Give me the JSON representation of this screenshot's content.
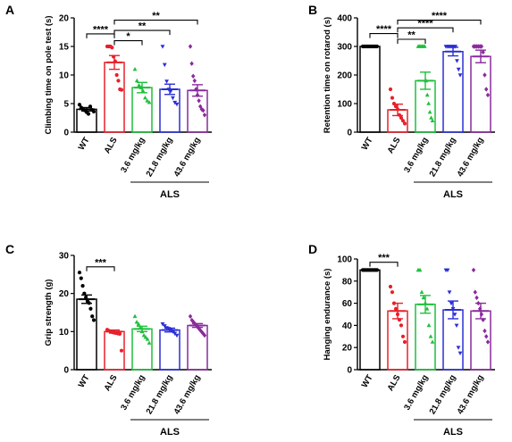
{
  "groups": {
    "labels": [
      "WT",
      "ALS",
      "3.6 mg/kg",
      "21.8 mg/kg",
      "43.6 mg/kg"
    ],
    "treatment_label": "ALS",
    "colors": [
      "#000000",
      "#e8202a",
      "#1fbf3c",
      "#2a2fd6",
      "#8a2a9c"
    ],
    "markers": [
      "circle",
      "circle",
      "triangle",
      "triangle-down",
      "diamond"
    ]
  },
  "chart_data": [
    {
      "panel": "A",
      "type": "bar",
      "ylabel": "Climbing time on pole test (s)",
      "ylim": [
        0,
        20
      ],
      "yticks": [
        0,
        5,
        10,
        15,
        20
      ],
      "means": [
        4.0,
        12.2,
        7.8,
        7.5,
        7.3
      ],
      "sem": [
        0.3,
        1.2,
        0.9,
        0.9,
        1.0
      ],
      "points": [
        [
          4.8,
          4.3,
          4.0,
          3.8,
          3.5,
          3.2,
          4.5,
          3.9,
          3.6
        ],
        [
          15.0,
          15.0,
          15.0,
          14.8,
          13.2,
          12.4,
          10.0,
          9.0,
          7.5,
          7.4
        ],
        [
          11.0,
          9.0,
          8.2,
          7.8,
          7.2,
          6.0,
          5.5,
          5.2
        ],
        [
          15.0,
          11.8,
          8.9,
          7.5,
          7.2,
          6.0,
          5.2,
          4.9
        ],
        [
          15.0,
          12.0,
          9.8,
          9.0,
          7.5,
          6.5,
          5.5,
          4.5,
          4.0,
          3.8,
          3.0
        ]
      ],
      "significance": [
        {
          "from": 0,
          "to": 1,
          "label": "****",
          "y": 17.2
        },
        {
          "from": 1,
          "to": 2,
          "label": "*",
          "y": 16.0
        },
        {
          "from": 1,
          "to": 3,
          "label": "**",
          "y": 17.8
        },
        {
          "from": 1,
          "to": 4,
          "label": "**",
          "y": 19.6
        }
      ]
    },
    {
      "panel": "B",
      "type": "bar",
      "ylabel": "Retention time on rotarod (s)",
      "ylim": [
        0,
        400
      ],
      "yticks": [
        0,
        100,
        200,
        300,
        400
      ],
      "means": [
        300,
        78,
        180,
        282,
        265
      ],
      "sem": [
        0,
        20,
        30,
        15,
        22
      ],
      "points": [
        [
          300,
          300,
          300,
          300,
          300,
          300,
          300,
          300,
          300,
          300
        ],
        [
          150,
          120,
          100,
          90,
          80,
          60,
          50,
          40,
          30
        ],
        [
          300,
          300,
          300,
          300,
          300,
          300,
          180,
          130,
          100,
          70,
          50,
          40
        ],
        [
          300,
          300,
          300,
          300,
          300,
          300,
          300,
          250,
          220,
          200
        ],
        [
          300,
          300,
          300,
          300,
          300,
          300,
          280,
          200,
          150,
          130
        ]
      ],
      "significance": [
        {
          "from": 0,
          "to": 1,
          "label": "****",
          "y": 345
        },
        {
          "from": 1,
          "to": 2,
          "label": "**",
          "y": 325
        },
        {
          "from": 1,
          "to": 3,
          "label": "****",
          "y": 365
        },
        {
          "from": 1,
          "to": 4,
          "label": "****",
          "y": 392
        }
      ]
    },
    {
      "panel": "C",
      "type": "bar",
      "ylabel": "Grip strength (g)",
      "ylim": [
        0,
        30
      ],
      "yticks": [
        0,
        10,
        20,
        30
      ],
      "means": [
        18.5,
        10.0,
        10.7,
        10.4,
        11.6
      ],
      "sem": [
        1.1,
        0.4,
        0.7,
        0.5,
        0.5
      ],
      "points": [
        [
          25.5,
          24.0,
          22.0,
          20.0,
          19.0,
          18.0,
          17.5,
          16.0,
          14.0,
          13.0
        ],
        [
          10.5,
          10.2,
          10.0,
          9.8,
          9.7,
          9.6,
          9.5,
          9.4,
          5.0
        ],
        [
          14.0,
          12.5,
          12.0,
          11.0,
          10.0,
          9.0,
          8.5,
          8.0,
          7.0
        ],
        [
          12.0,
          11.5,
          11.0,
          10.8,
          10.5,
          10.0,
          9.5,
          9.0
        ],
        [
          14.0,
          13.0,
          12.5,
          12.0,
          11.5,
          11.0,
          10.5,
          10.0,
          9.5,
          9.0
        ]
      ],
      "significance": [
        {
          "from": 0,
          "to": 1,
          "label": "***",
          "y": 27.0
        }
      ]
    },
    {
      "panel": "D",
      "type": "bar",
      "ylabel": "Hanging endurance (s)",
      "ylim": [
        0,
        100
      ],
      "yticks": [
        0,
        20,
        40,
        60,
        80,
        100
      ],
      "means": [
        90,
        53,
        59,
        54,
        53
      ],
      "sem": [
        0,
        7,
        8,
        8,
        7
      ],
      "points": [
        [
          90,
          90,
          90,
          90,
          90,
          90,
          90,
          90,
          90,
          90
        ],
        [
          75,
          70,
          60,
          55,
          50,
          45,
          40,
          30,
          25
        ],
        [
          90,
          90,
          70,
          65,
          60,
          55,
          40,
          30,
          25
        ],
        [
          90,
          90,
          70,
          60,
          55,
          50,
          40,
          20,
          15
        ],
        [
          90,
          70,
          65,
          60,
          55,
          50,
          45,
          35,
          30,
          25
        ]
      ],
      "significance": [
        {
          "from": 0,
          "to": 1,
          "label": "***",
          "y": 97
        }
      ]
    }
  ]
}
